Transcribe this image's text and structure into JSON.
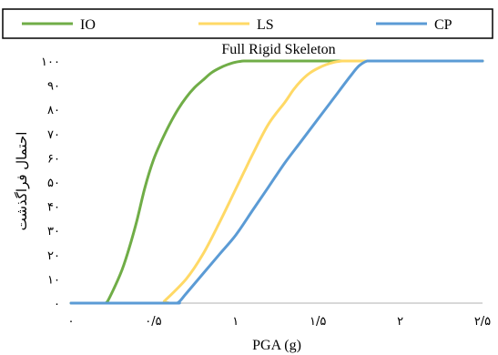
{
  "chart_data": {
    "type": "line",
    "title": "Full Rigid Skeleton",
    "xlabel": "PGA (g)",
    "ylabel": "احتمال فراگذشت",
    "xlim": [
      0,
      2.5
    ],
    "ylim": [
      0,
      100
    ],
    "x_ticks": [
      0,
      0.5,
      1,
      1.5,
      2,
      2.5
    ],
    "x_tick_labels": [
      "۰",
      "۰/۵",
      "۱",
      "۱/۵",
      "۲",
      "۲/۵"
    ],
    "y_ticks": [
      0,
      10,
      20,
      30,
      40,
      50,
      60,
      70,
      80,
      90,
      100
    ],
    "y_tick_labels": [
      "۰",
      "۱۰",
      "۲۰",
      "۳۰",
      "۴۰",
      "۵۰",
      "۶۰",
      "۷۰",
      "۸۰",
      "۹۰",
      "۱۰۰"
    ],
    "grid": false,
    "legend_position": "top",
    "series": [
      {
        "name": "IO",
        "color": "#70ad47",
        "x": [
          0,
          0.2,
          0.22,
          0.3,
          0.35,
          0.4,
          0.45,
          0.5,
          0.55,
          0.6,
          0.65,
          0.7,
          0.75,
          0.8,
          0.85,
          0.9,
          0.95,
          1.0,
          1.05,
          1.1,
          1.2,
          1.3,
          1.5,
          1.8,
          2.5
        ],
        "y": [
          0,
          0,
          0.5,
          12,
          22,
          34,
          48,
          59,
          67,
          74,
          80,
          85,
          89,
          92,
          95,
          97,
          98.5,
          99.5,
          100,
          100,
          100,
          100,
          100,
          100,
          100
        ]
      },
      {
        "name": "LS",
        "color": "#ffd966",
        "x": [
          0,
          0.55,
          0.57,
          0.7,
          0.8,
          0.9,
          1.0,
          1.05,
          1.1,
          1.2,
          1.3,
          1.35,
          1.4,
          1.45,
          1.5,
          1.55,
          1.6,
          1.65,
          1.7,
          1.75,
          1.8,
          2.0,
          2.5
        ],
        "y": [
          0,
          0,
          1,
          10,
          20,
          33,
          47,
          54,
          61,
          74,
          83,
          88,
          92,
          95,
          97,
          98.5,
          99.5,
          100,
          100,
          100,
          100,
          100,
          100
        ]
      },
      {
        "name": "CP",
        "color": "#5b9bd5",
        "x": [
          0,
          0.6,
          0.65,
          0.7,
          0.8,
          0.9,
          1.0,
          1.1,
          1.2,
          1.3,
          1.4,
          1.5,
          1.6,
          1.7,
          1.75,
          1.8,
          1.85,
          2.0,
          2.5
        ],
        "y": [
          0,
          0,
          0.2,
          4,
          12,
          20,
          28,
          38,
          48,
          58,
          67,
          76,
          85,
          94,
          98,
          100,
          100,
          100,
          100
        ]
      }
    ]
  }
}
